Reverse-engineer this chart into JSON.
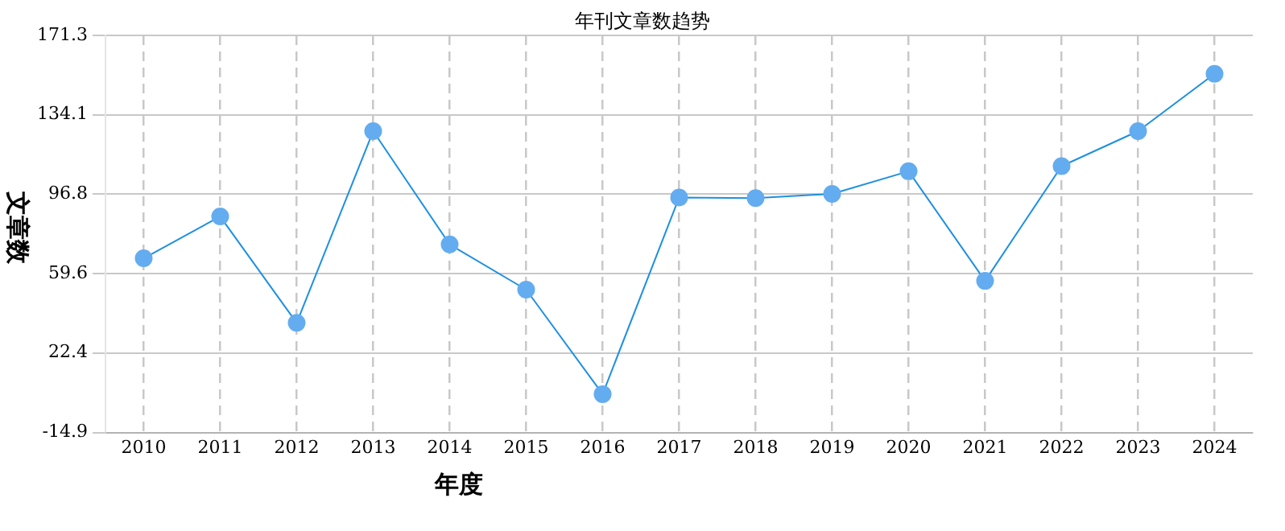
{
  "chart_data": {
    "type": "line",
    "title": "年刊文章数趋势",
    "xlabel": "年度",
    "ylabel": "文章数",
    "categories": [
      "2010",
      "2011",
      "2012",
      "2013",
      "2014",
      "2015",
      "2016",
      "2017",
      "2018",
      "2019",
      "2020",
      "2021",
      "2022",
      "2023",
      "2024"
    ],
    "series": [
      {
        "color": "#1e90e0",
        "values": [
          66.8,
          86.4,
          36.5,
          126.4,
          73.3,
          52.1,
          3.1,
          95.3,
          95,
          97,
          107.6,
          56.2,
          110,
          126.4,
          153.3
        ]
      }
    ],
    "ylim": [
      -14.9,
      171.3
    ],
    "yticks": [
      -14.9,
      22.4,
      59.6,
      96.8,
      134.1,
      171.3
    ],
    "grid": true,
    "marker": "circle",
    "line_style": "solid",
    "legend": false
  }
}
